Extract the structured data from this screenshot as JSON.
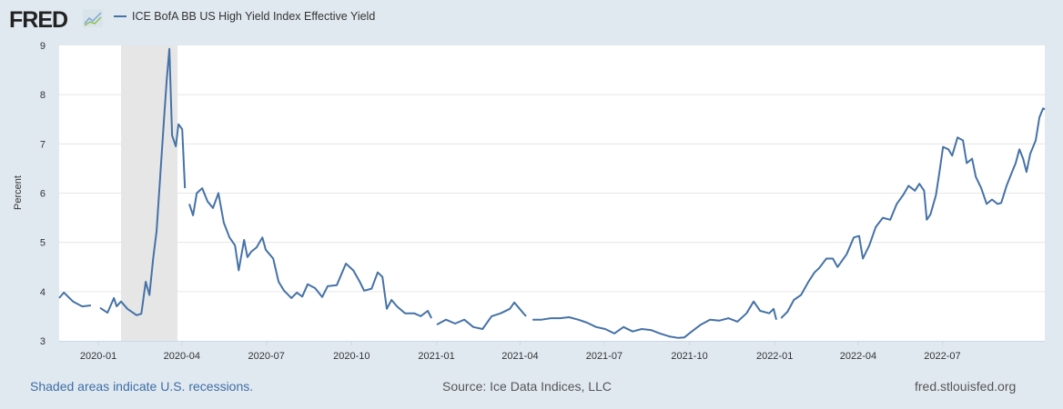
{
  "header": {
    "logo": "FRED",
    "logo_icon": "line-graph-icon"
  },
  "colors": {
    "line": "#4572a7",
    "recession": "#e6e6e6",
    "grid": "#e6e6e6",
    "plot_bg": "#ffffff"
  },
  "footer": {
    "left": "Shaded areas indicate U.S. recessions.",
    "center": "Source: Ice Data Indices, LLC",
    "right": "fred.stlouisfed.org"
  },
  "chart_data": {
    "type": "line",
    "title": "",
    "xlabel": "",
    "ylabel": "Percent",
    "ylim": [
      3,
      9
    ],
    "xlim": [
      2019.884,
      2022.799
    ],
    "x_units": "decimal year",
    "grid": true,
    "legend_position": "top-left",
    "yticks": [
      3,
      4,
      5,
      6,
      7,
      8,
      9
    ],
    "xticks": [
      {
        "x": 2020.0,
        "label": "2020-01"
      },
      {
        "x": 2020.247,
        "label": "2020-04"
      },
      {
        "x": 2020.497,
        "label": "2020-07"
      },
      {
        "x": 2020.749,
        "label": "2020-10"
      },
      {
        "x": 2021.0,
        "label": "2021-01"
      },
      {
        "x": 2021.247,
        "label": "2021-04"
      },
      {
        "x": 2021.496,
        "label": "2021-07"
      },
      {
        "x": 2021.748,
        "label": "2021-10"
      },
      {
        "x": 2022.0,
        "label": "2022-01"
      },
      {
        "x": 2022.247,
        "label": "2022-04"
      },
      {
        "x": 2022.496,
        "label": "2022-07"
      }
    ],
    "recessions": [
      [
        2020.067,
        2020.234
      ]
    ],
    "series": [
      {
        "name": "ICE BofA BB US High Yield Index Effective Yield",
        "points": [
          [
            2019.884,
            3.87
          ],
          [
            2019.898,
            3.98
          ],
          [
            2019.925,
            3.8
          ],
          [
            2019.952,
            3.7
          ],
          [
            2019.978,
            3.72
          ],
          null,
          [
            2020.005,
            3.67
          ],
          [
            2020.027,
            3.57
          ],
          [
            2020.046,
            3.87
          ],
          [
            2020.054,
            3.7
          ],
          [
            2020.067,
            3.8
          ],
          [
            2020.086,
            3.65
          ],
          [
            2020.113,
            3.52
          ],
          [
            2020.127,
            3.55
          ],
          [
            2020.14,
            4.2
          ],
          [
            2020.151,
            3.93
          ],
          [
            2020.162,
            4.67
          ],
          [
            2020.172,
            5.22
          ],
          [
            2020.18,
            6.05
          ],
          [
            2020.194,
            7.5
          ],
          [
            2020.202,
            8.28
          ],
          [
            2020.21,
            8.93
          ],
          [
            2020.218,
            7.17
          ],
          [
            2020.229,
            6.95
          ],
          [
            2020.237,
            7.4
          ],
          [
            2020.248,
            7.3
          ],
          [
            2020.256,
            6.1
          ],
          null,
          [
            2020.269,
            5.78
          ],
          [
            2020.28,
            5.55
          ],
          [
            2020.291,
            6.0
          ],
          [
            2020.307,
            6.1
          ],
          [
            2020.323,
            5.83
          ],
          [
            2020.339,
            5.7
          ],
          [
            2020.355,
            6.0
          ],
          [
            2020.371,
            5.4
          ],
          [
            2020.388,
            5.1
          ],
          [
            2020.404,
            4.94
          ],
          [
            2020.415,
            4.43
          ],
          [
            2020.431,
            5.05
          ],
          [
            2020.441,
            4.7
          ],
          [
            2020.452,
            4.81
          ],
          [
            2020.468,
            4.9
          ],
          [
            2020.485,
            5.1
          ],
          [
            2020.495,
            4.85
          ],
          [
            2020.517,
            4.67
          ],
          [
            2020.533,
            4.2
          ],
          [
            2020.549,
            4.02
          ],
          [
            2020.571,
            3.87
          ],
          [
            2020.587,
            3.98
          ],
          [
            2020.603,
            3.9
          ],
          [
            2020.619,
            4.15
          ],
          [
            2020.641,
            4.07
          ],
          [
            2020.662,
            3.89
          ],
          [
            2020.678,
            4.11
          ],
          [
            2020.705,
            4.13
          ],
          [
            2020.732,
            4.57
          ],
          [
            2020.754,
            4.43
          ],
          [
            2020.773,
            4.2
          ],
          [
            2020.786,
            4.02
          ],
          [
            2020.808,
            4.06
          ],
          [
            2020.826,
            4.39
          ],
          [
            2020.84,
            4.3
          ],
          [
            2020.853,
            3.65
          ],
          [
            2020.867,
            3.83
          ],
          [
            2020.883,
            3.7
          ],
          [
            2020.907,
            3.56
          ],
          [
            2020.934,
            3.56
          ],
          [
            2020.953,
            3.5
          ],
          [
            2020.974,
            3.61
          ],
          [
            2020.985,
            3.46
          ],
          null,
          [
            2021.001,
            3.33
          ],
          [
            2021.028,
            3.43
          ],
          [
            2021.055,
            3.35
          ],
          [
            2021.082,
            3.43
          ],
          [
            2021.109,
            3.28
          ],
          [
            2021.136,
            3.24
          ],
          [
            2021.163,
            3.5
          ],
          [
            2021.19,
            3.56
          ],
          [
            2021.217,
            3.65
          ],
          [
            2021.23,
            3.78
          ],
          [
            2021.257,
            3.56
          ],
          [
            2021.265,
            3.5
          ],
          null,
          [
            2021.284,
            3.43
          ],
          [
            2021.311,
            3.43
          ],
          [
            2021.338,
            3.46
          ],
          [
            2021.365,
            3.46
          ],
          [
            2021.392,
            3.48
          ],
          [
            2021.419,
            3.43
          ],
          [
            2021.445,
            3.37
          ],
          [
            2021.472,
            3.28
          ],
          [
            2021.499,
            3.24
          ],
          [
            2021.526,
            3.15
          ],
          [
            2021.553,
            3.28
          ],
          [
            2021.58,
            3.19
          ],
          [
            2021.607,
            3.24
          ],
          [
            2021.634,
            3.22
          ],
          [
            2021.661,
            3.15
          ],
          [
            2021.688,
            3.09
          ],
          [
            2021.715,
            3.06
          ],
          [
            2021.733,
            3.07
          ],
          [
            2021.755,
            3.19
          ],
          [
            2021.782,
            3.33
          ],
          [
            2021.809,
            3.43
          ],
          [
            2021.836,
            3.41
          ],
          [
            2021.863,
            3.46
          ],
          [
            2021.89,
            3.39
          ],
          [
            2021.917,
            3.56
          ],
          [
            2021.938,
            3.8
          ],
          [
            2021.957,
            3.61
          ],
          [
            2021.984,
            3.56
          ],
          [
            2021.997,
            3.65
          ],
          [
            2022.005,
            3.43
          ],
          null,
          [
            2022.019,
            3.46
          ],
          [
            2022.038,
            3.59
          ],
          [
            2022.057,
            3.83
          ],
          [
            2022.078,
            3.93
          ],
          [
            2022.1,
            4.2
          ],
          [
            2022.118,
            4.39
          ],
          [
            2022.132,
            4.48
          ],
          [
            2022.153,
            4.67
          ],
          [
            2022.172,
            4.67
          ],
          [
            2022.186,
            4.5
          ],
          [
            2022.213,
            4.76
          ],
          [
            2022.234,
            5.1
          ],
          [
            2022.25,
            5.13
          ],
          [
            2022.261,
            4.67
          ],
          [
            2022.28,
            4.94
          ],
          [
            2022.299,
            5.31
          ],
          [
            2022.32,
            5.5
          ],
          [
            2022.342,
            5.46
          ],
          [
            2022.361,
            5.78
          ],
          [
            2022.38,
            5.96
          ],
          [
            2022.396,
            6.15
          ],
          [
            2022.415,
            6.05
          ],
          [
            2022.428,
            6.19
          ],
          [
            2022.442,
            6.05
          ],
          [
            2022.45,
            5.46
          ],
          [
            2022.461,
            5.57
          ],
          [
            2022.477,
            5.96
          ],
          [
            2022.488,
            6.46
          ],
          [
            2022.498,
            6.94
          ],
          [
            2022.514,
            6.89
          ],
          [
            2022.525,
            6.76
          ],
          [
            2022.541,
            7.13
          ],
          [
            2022.557,
            7.07
          ],
          [
            2022.568,
            6.61
          ],
          [
            2022.584,
            6.7
          ],
          [
            2022.595,
            6.33
          ],
          [
            2022.611,
            6.1
          ],
          [
            2022.627,
            5.78
          ],
          [
            2022.643,
            5.87
          ],
          [
            2022.659,
            5.78
          ],
          [
            2022.67,
            5.8
          ],
          [
            2022.686,
            6.15
          ],
          [
            2022.702,
            6.43
          ],
          [
            2022.713,
            6.61
          ],
          [
            2022.724,
            6.89
          ],
          [
            2022.735,
            6.7
          ],
          [
            2022.745,
            6.43
          ],
          [
            2022.756,
            6.8
          ],
          [
            2022.772,
            7.07
          ],
          [
            2022.783,
            7.54
          ],
          [
            2022.794,
            7.72
          ],
          [
            2022.799,
            7.7
          ]
        ]
      }
    ]
  }
}
